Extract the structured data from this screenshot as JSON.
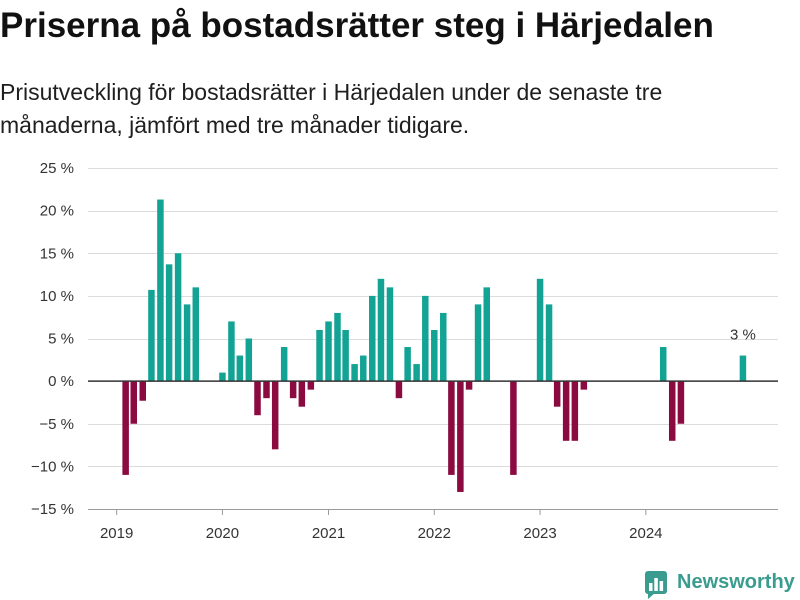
{
  "chart_data": {
    "type": "bar",
    "title": "Priserna på bostadsrätter steg i Härjedalen",
    "subtitle": "Prisutveckling för bostadsrätter i Härjedalen under de senaste tre månaderna, jämfört med tre månader tidigare.",
    "x_scale": "time",
    "xlim": [
      "2018-10-01",
      "2025-04-01"
    ],
    "ylim": [
      -15,
      25
    ],
    "unit": "%",
    "y_ticks": [
      -15,
      -10,
      -5,
      0,
      5,
      10,
      15,
      20,
      25
    ],
    "y_tick_labels": [
      "−15 %",
      "−10 %",
      "−5 %",
      "0 %",
      "5 %",
      "10 %",
      "15 %",
      "20 %",
      "25 %"
    ],
    "x_tick_labels": [
      "2019",
      "2020",
      "2021",
      "2022",
      "2023",
      "2024"
    ],
    "grid": "horizontal",
    "legend": "none",
    "colors": {
      "positive": "#13a395",
      "negative": "#8b0a40"
    },
    "x": [
      "2019-02-01",
      "2019-03-01",
      "2019-04-01",
      "2019-05-01",
      "2019-06-01",
      "2019-07-01",
      "2019-08-01",
      "2019-09-01",
      "2019-10-01",
      "2020-01-01",
      "2020-02-01",
      "2020-03-01",
      "2020-04-01",
      "2020-05-01",
      "2020-06-01",
      "2020-07-01",
      "2020-08-01",
      "2020-09-01",
      "2020-10-01",
      "2020-11-01",
      "2020-12-01",
      "2021-01-01",
      "2021-02-01",
      "2021-03-01",
      "2021-04-01",
      "2021-05-01",
      "2021-06-01",
      "2021-07-01",
      "2021-08-01",
      "2021-09-01",
      "2021-10-01",
      "2021-11-01",
      "2021-12-01",
      "2022-01-01",
      "2022-02-01",
      "2022-03-01",
      "2022-04-01",
      "2022-05-01",
      "2022-06-01",
      "2022-07-01",
      "2022-10-01",
      "2023-01-01",
      "2023-02-01",
      "2023-03-01",
      "2023-04-01",
      "2023-05-01",
      "2023-06-01",
      "2024-03-01",
      "2024-04-01",
      "2024-05-01",
      "2024-12-01"
    ],
    "values": [
      -11,
      -5,
      -2.3,
      10.7,
      21.3,
      13.7,
      15,
      9,
      11,
      1,
      7,
      3,
      5,
      -4,
      -2,
      -8,
      4,
      -2,
      -3,
      -1,
      6,
      7,
      8,
      6,
      2,
      3,
      10,
      12,
      11,
      -2,
      4,
      2,
      10,
      6,
      8,
      -11,
      -13,
      -1,
      9,
      11,
      -11,
      12,
      9,
      -3,
      -7,
      -7,
      -1,
      4,
      -7,
      -5,
      3
    ],
    "annotations": [
      {
        "x": "2024-12-01",
        "y": 3,
        "text": "3 %"
      }
    ]
  },
  "brand": {
    "name": "Newsworthy",
    "icon": "newsworthy-logo-icon",
    "color": "#3a9c8e"
  }
}
